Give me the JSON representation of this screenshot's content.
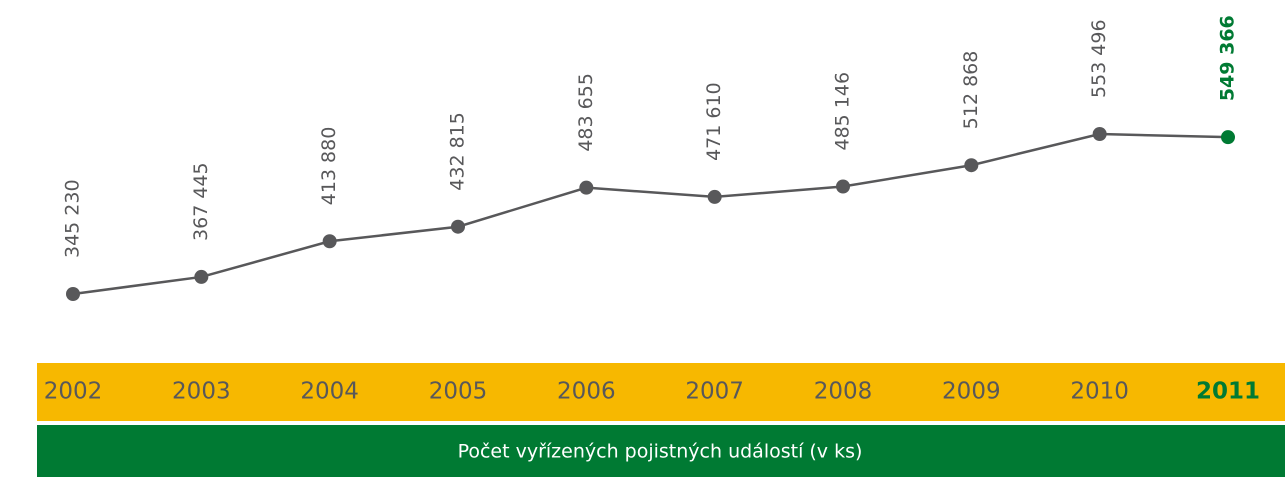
{
  "chart_data": {
    "type": "line",
    "title": "Počet vyřízených pojistných událostí (v ks)",
    "categories": [
      "2002",
      "2003",
      "2004",
      "2005",
      "2006",
      "2007",
      "2008",
      "2009",
      "2010",
      "2011"
    ],
    "values": [
      345230,
      367445,
      413880,
      432815,
      483655,
      471610,
      485146,
      512868,
      553496,
      549366
    ],
    "value_labels": [
      "345 230",
      "367 445",
      "413 880",
      "432 815",
      "483 655",
      "471 610",
      "485 146",
      "512 868",
      "553 496",
      "549 366"
    ],
    "color": "#58585a",
    "highlight_color": "#007a33",
    "band_color": "#f7b800"
  }
}
